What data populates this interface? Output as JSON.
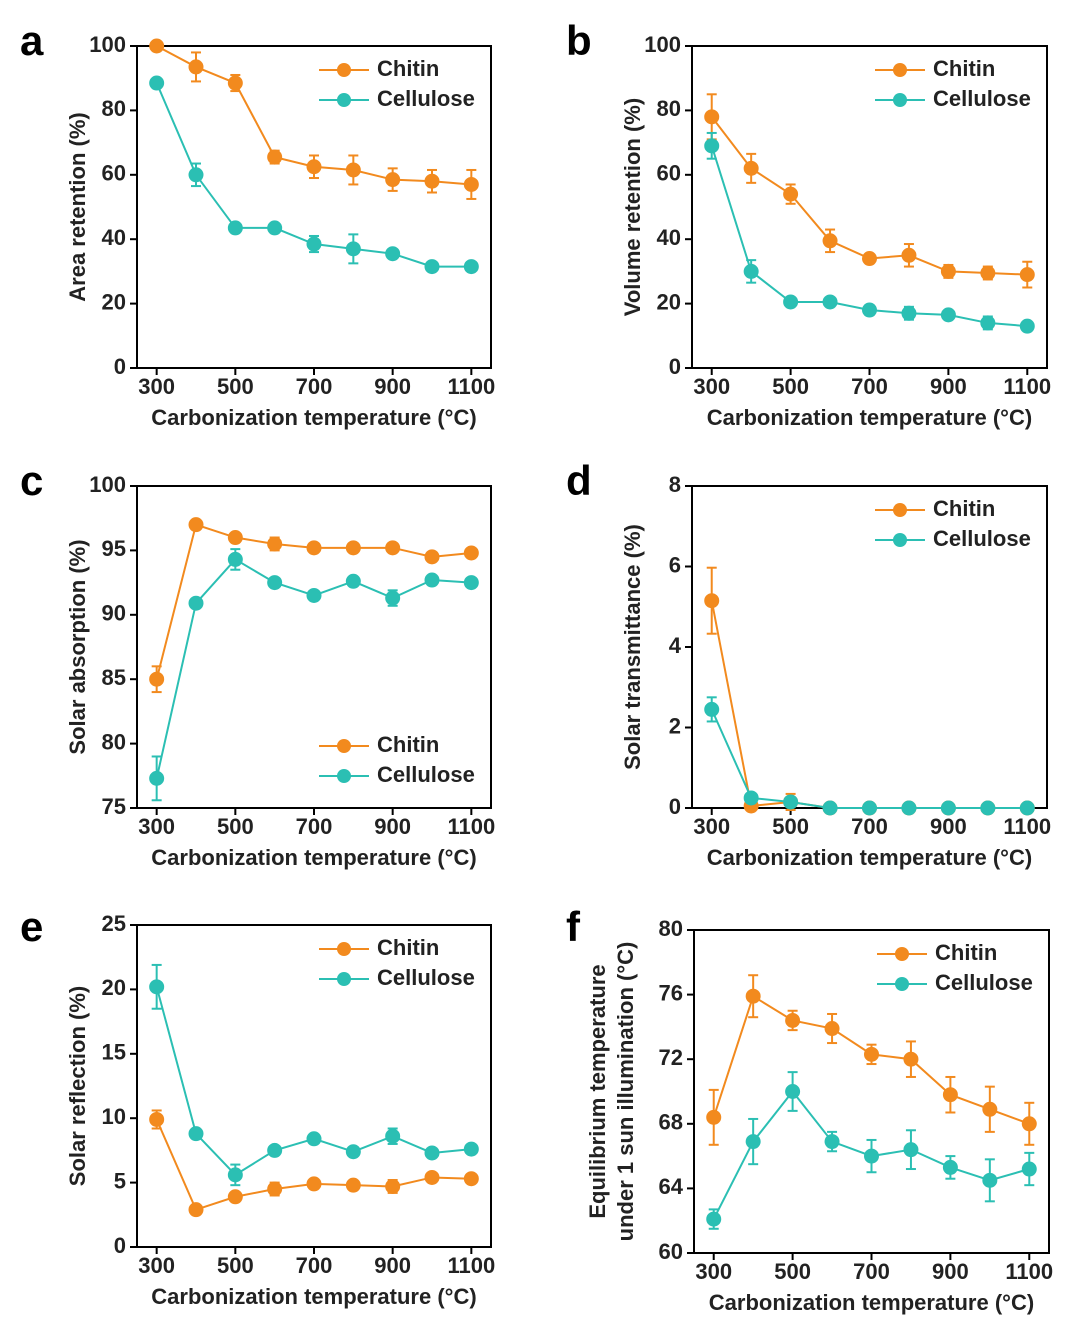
{
  "chart_data": [
    {
      "type": "line",
      "label": "a",
      "xlabel": "Carbonization temperature (°C)",
      "ylabel": "Area retention (%)",
      "x": [
        300,
        400,
        500,
        600,
        700,
        800,
        900,
        1000,
        1100
      ],
      "xlim": [
        250,
        1150
      ],
      "xticks": [
        300,
        500,
        700,
        900,
        1100
      ],
      "ylim": [
        0,
        100
      ],
      "yticks": [
        0,
        20,
        40,
        60,
        80,
        100
      ],
      "legend": "top-right",
      "series": [
        {
          "name": "Chitin",
          "color": "#f28a1e",
          "values": [
            100,
            93.5,
            88.5,
            65.5,
            62.5,
            61.5,
            58.5,
            58,
            57
          ],
          "errors": [
            0,
            4.5,
            2.5,
            2,
            3.5,
            4.5,
            3.5,
            3.5,
            4.5
          ]
        },
        {
          "name": "Cellulose",
          "color": "#2bbfb3",
          "values": [
            88.5,
            60,
            43.5,
            43.5,
            38.5,
            37,
            35.5,
            31.5,
            31.5
          ],
          "errors": [
            0,
            3.5,
            0,
            0,
            2.5,
            4.5,
            1,
            1,
            1
          ]
        }
      ]
    },
    {
      "type": "line",
      "label": "b",
      "xlabel": "Carbonization temperature (°C)",
      "ylabel": "Volume retention (%)",
      "x": [
        300,
        400,
        500,
        600,
        700,
        800,
        900,
        1000,
        1100
      ],
      "xlim": [
        250,
        1150
      ],
      "xticks": [
        300,
        500,
        700,
        900,
        1100
      ],
      "ylim": [
        0,
        100
      ],
      "yticks": [
        0,
        20,
        40,
        60,
        80,
        100
      ],
      "legend": "top-right",
      "series": [
        {
          "name": "Chitin",
          "color": "#f28a1e",
          "values": [
            78,
            62,
            54,
            39.5,
            34,
            35,
            30,
            29.5,
            29
          ],
          "errors": [
            7,
            4.5,
            3,
            3.5,
            1,
            3.5,
            2,
            2,
            4
          ]
        },
        {
          "name": "Cellulose",
          "color": "#2bbfb3",
          "values": [
            69,
            30,
            20.5,
            20.5,
            18,
            17,
            16.5,
            14,
            13
          ],
          "errors": [
            4,
            3.5,
            0,
            0,
            1.5,
            2,
            1,
            2,
            1
          ]
        }
      ]
    },
    {
      "type": "line",
      "label": "c",
      "xlabel": "Carbonization temperature (°C)",
      "ylabel": "Solar absorption (%)",
      "x": [
        300,
        400,
        500,
        600,
        700,
        800,
        900,
        1000,
        1100
      ],
      "xlim": [
        250,
        1150
      ],
      "xticks": [
        300,
        500,
        700,
        900,
        1100
      ],
      "ylim": [
        75,
        100
      ],
      "yticks": [
        75,
        80,
        85,
        90,
        95,
        100
      ],
      "legend": "bottom-right",
      "series": [
        {
          "name": "Chitin",
          "color": "#f28a1e",
          "values": [
            85,
            97,
            96,
            95.5,
            95.2,
            95.2,
            95.2,
            94.5,
            94.8
          ],
          "errors": [
            1,
            0,
            0,
            0.5,
            0,
            0,
            0,
            0,
            0
          ]
        },
        {
          "name": "Cellulose",
          "color": "#2bbfb3",
          "values": [
            77.3,
            90.9,
            94.3,
            92.5,
            91.5,
            92.6,
            91.3,
            92.7,
            92.5
          ],
          "errors": [
            1.7,
            0,
            0.8,
            0,
            0,
            0,
            0.6,
            0,
            0
          ]
        }
      ]
    },
    {
      "type": "line",
      "label": "d",
      "xlabel": "Carbonization temperature (°C)",
      "ylabel": "Solar transmittance (%)",
      "x": [
        300,
        400,
        500,
        600,
        700,
        800,
        900,
        1000,
        1100
      ],
      "xlim": [
        250,
        1150
      ],
      "xticks": [
        300,
        500,
        700,
        900,
        1100
      ],
      "ylim": [
        0,
        8
      ],
      "yticks": [
        0,
        2,
        4,
        6,
        8
      ],
      "legend": "top-right",
      "series": [
        {
          "name": "Chitin",
          "color": "#f28a1e",
          "values": [
            5.15,
            0.05,
            0.15,
            0,
            0,
            0,
            0,
            0,
            0
          ],
          "errors": [
            0.82,
            0,
            0.2,
            0,
            0,
            0,
            0,
            0,
            0
          ]
        },
        {
          "name": "Cellulose",
          "color": "#2bbfb3",
          "values": [
            2.45,
            0.25,
            0.15,
            0,
            0,
            0,
            0,
            0,
            0
          ],
          "errors": [
            0.3,
            0,
            0,
            0,
            0,
            0,
            0,
            0,
            0
          ]
        }
      ]
    },
    {
      "type": "line",
      "label": "e",
      "xlabel": "Carbonization temperature (°C)",
      "ylabel": "Solar reflection (%)",
      "x": [
        300,
        400,
        500,
        600,
        700,
        800,
        900,
        1000,
        1100
      ],
      "xlim": [
        250,
        1150
      ],
      "xticks": [
        300,
        500,
        700,
        900,
        1100
      ],
      "ylim": [
        0,
        25
      ],
      "yticks": [
        0,
        5,
        10,
        15,
        20,
        25
      ],
      "legend": "top-right",
      "series": [
        {
          "name": "Chitin",
          "color": "#f28a1e",
          "values": [
            9.9,
            2.9,
            3.9,
            4.5,
            4.9,
            4.8,
            4.7,
            5.4,
            5.3
          ],
          "errors": [
            0.7,
            0,
            0.3,
            0.5,
            0,
            0,
            0.5,
            0,
            0
          ]
        },
        {
          "name": "Cellulose",
          "color": "#2bbfb3",
          "values": [
            20.2,
            8.8,
            5.6,
            7.5,
            8.4,
            7.4,
            8.6,
            7.3,
            7.6
          ],
          "errors": [
            1.7,
            0,
            0.8,
            0,
            0,
            0,
            0.6,
            0,
            0
          ]
        }
      ]
    },
    {
      "type": "line",
      "label": "f",
      "xlabel": "Carbonization temperature (°C)",
      "ylabel": [
        "Equilibrium temperature",
        "under 1 sun illumination (°C)"
      ],
      "x": [
        300,
        400,
        500,
        600,
        700,
        800,
        900,
        1000,
        1100
      ],
      "xlim": [
        250,
        1150
      ],
      "xticks": [
        300,
        500,
        700,
        900,
        1100
      ],
      "ylim": [
        60,
        80
      ],
      "yticks": [
        60,
        64,
        68,
        72,
        76,
        80
      ],
      "legend": "top-right",
      "series": [
        {
          "name": "Chitin",
          "color": "#f28a1e",
          "values": [
            68.4,
            75.9,
            74.4,
            73.9,
            72.3,
            72,
            69.8,
            68.9,
            68
          ],
          "errors": [
            1.7,
            1.3,
            0.6,
            0.9,
            0.6,
            1.1,
            1.1,
            1.4,
            1.3
          ]
        },
        {
          "name": "Cellulose",
          "color": "#2bbfb3",
          "values": [
            62.1,
            66.9,
            70,
            66.9,
            66,
            66.4,
            65.3,
            64.5,
            65.2
          ],
          "errors": [
            0.6,
            1.4,
            1.2,
            0.6,
            1,
            1.2,
            0.7,
            1.3,
            1
          ]
        }
      ]
    }
  ]
}
